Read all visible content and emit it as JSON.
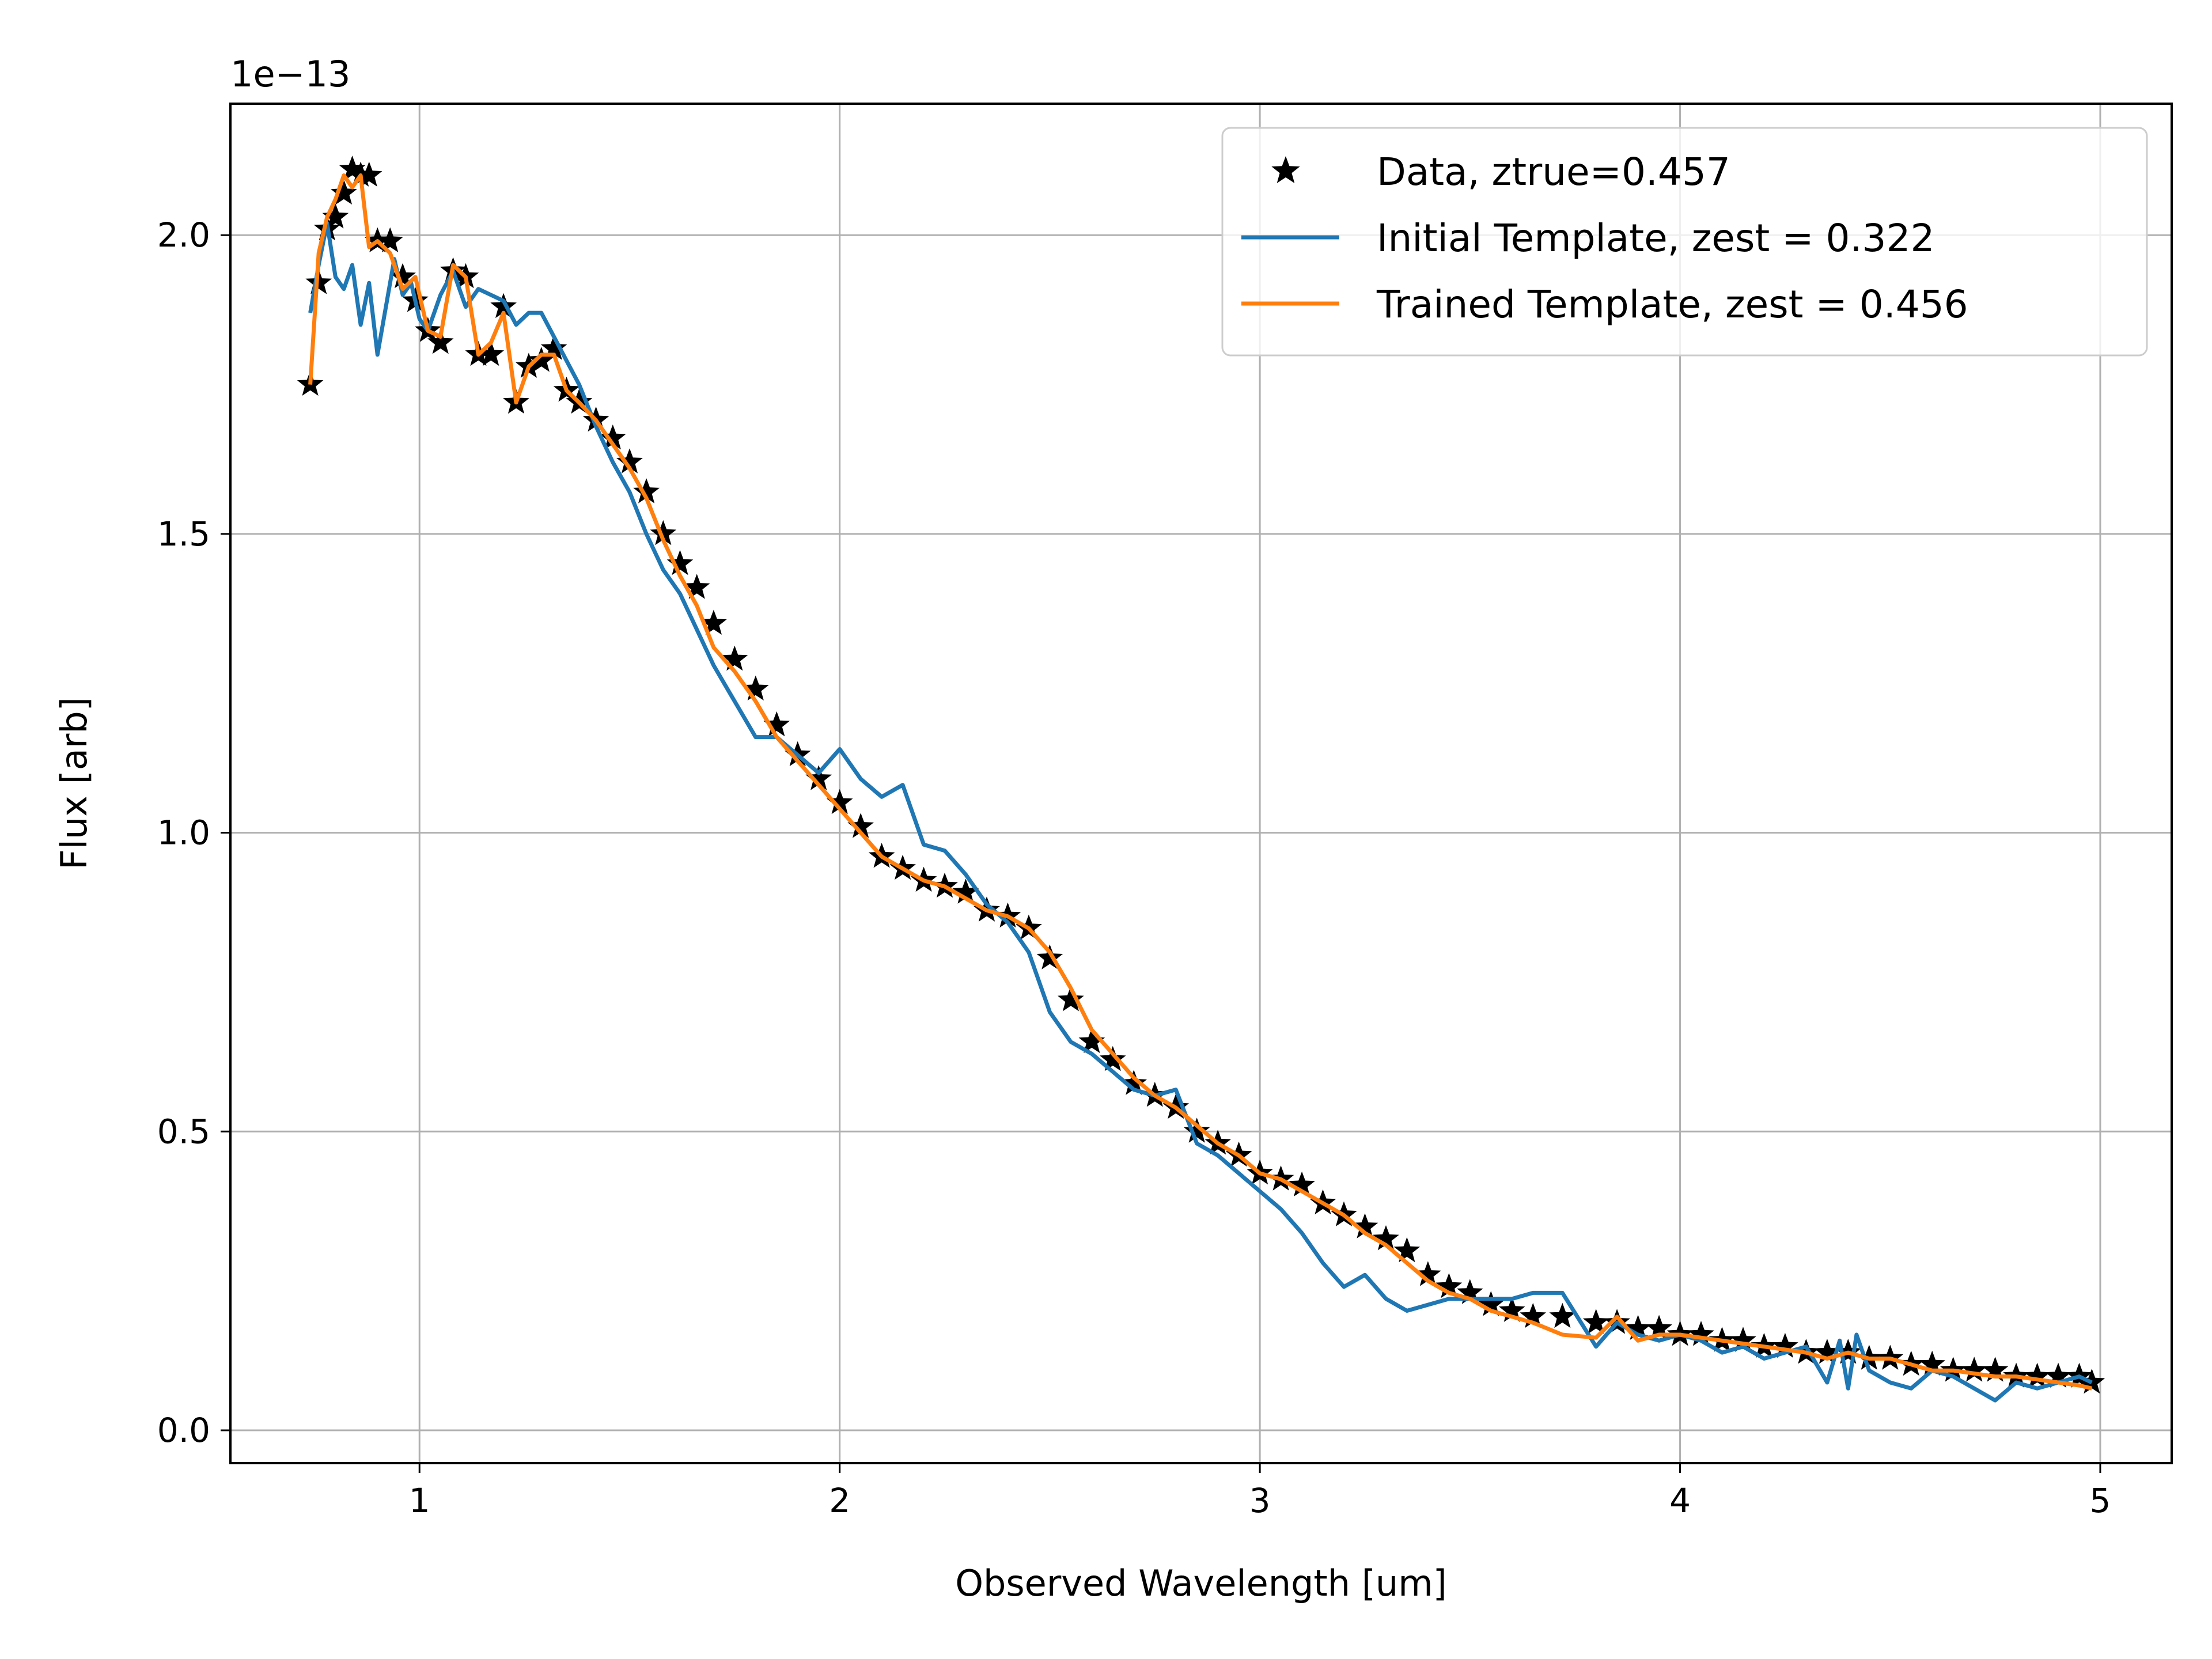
{
  "chart_data": {
    "type": "line",
    "title": "",
    "xlabel": "Observed Wavelength [um]",
    "ylabel": "Flux [arb]",
    "y_offset_text": "1e−13",
    "xlim": [
      0.55,
      5.17
    ],
    "ylim": [
      -0.055,
      2.22
    ],
    "xticks": [
      1,
      2,
      3,
      4,
      5
    ],
    "xtick_labels": [
      "1",
      "2",
      "3",
      "4",
      "5"
    ],
    "yticks": [
      0.0,
      0.5,
      1.0,
      1.5,
      2.0
    ],
    "ytick_labels": [
      "0.0",
      "0.5",
      "1.0",
      "1.5",
      "2.0"
    ],
    "grid": true,
    "legend_position": "upper-right",
    "series": [
      {
        "name": "Data, ztrue=0.457",
        "style": "markers",
        "marker": "star",
        "color": "#000000",
        "x": [
          0.74,
          0.76,
          0.78,
          0.8,
          0.82,
          0.84,
          0.86,
          0.88,
          0.9,
          0.93,
          0.96,
          0.99,
          1.02,
          1.05,
          1.08,
          1.11,
          1.14,
          1.17,
          1.2,
          1.23,
          1.26,
          1.29,
          1.32,
          1.35,
          1.38,
          1.42,
          1.46,
          1.5,
          1.54,
          1.58,
          1.62,
          1.66,
          1.7,
          1.75,
          1.8,
          1.85,
          1.9,
          1.95,
          2.0,
          2.05,
          2.1,
          2.15,
          2.2,
          2.25,
          2.3,
          2.35,
          2.4,
          2.45,
          2.5,
          2.55,
          2.6,
          2.65,
          2.7,
          2.75,
          2.8,
          2.85,
          2.9,
          2.95,
          3.0,
          3.05,
          3.1,
          3.15,
          3.2,
          3.25,
          3.3,
          3.35,
          3.4,
          3.45,
          3.5,
          3.55,
          3.6,
          3.65,
          3.72,
          3.8,
          3.85,
          3.9,
          3.95,
          4.0,
          4.05,
          4.1,
          4.15,
          4.2,
          4.25,
          4.3,
          4.35,
          4.4,
          4.45,
          4.5,
          4.55,
          4.6,
          4.65,
          4.7,
          4.75,
          4.8,
          4.85,
          4.9,
          4.95,
          4.98
        ],
        "values": [
          1.75,
          1.92,
          2.01,
          2.03,
          2.07,
          2.11,
          2.1,
          2.1,
          1.99,
          1.99,
          1.93,
          1.89,
          1.84,
          1.82,
          1.94,
          1.93,
          1.8,
          1.8,
          1.88,
          1.72,
          1.78,
          1.79,
          1.81,
          1.74,
          1.72,
          1.69,
          1.66,
          1.62,
          1.57,
          1.5,
          1.45,
          1.41,
          1.35,
          1.29,
          1.24,
          1.18,
          1.13,
          1.09,
          1.05,
          1.01,
          0.96,
          0.94,
          0.92,
          0.91,
          0.9,
          0.87,
          0.86,
          0.84,
          0.79,
          0.72,
          0.65,
          0.62,
          0.58,
          0.56,
          0.54,
          0.5,
          0.48,
          0.46,
          0.43,
          0.42,
          0.41,
          0.38,
          0.36,
          0.34,
          0.32,
          0.3,
          0.26,
          0.24,
          0.23,
          0.21,
          0.2,
          0.19,
          0.19,
          0.18,
          0.18,
          0.17,
          0.17,
          0.16,
          0.16,
          0.15,
          0.15,
          0.14,
          0.14,
          0.13,
          0.13,
          0.13,
          0.12,
          0.12,
          0.11,
          0.11,
          0.1,
          0.1,
          0.1,
          0.09,
          0.09,
          0.09,
          0.09,
          0.08
        ]
      },
      {
        "name": "Initial Template, zest = 0.322",
        "style": "line",
        "color": "#1f77b4",
        "x": [
          0.74,
          0.76,
          0.78,
          0.8,
          0.82,
          0.84,
          0.86,
          0.88,
          0.9,
          0.92,
          0.94,
          0.96,
          0.98,
          1.0,
          1.02,
          1.05,
          1.08,
          1.11,
          1.14,
          1.17,
          1.2,
          1.23,
          1.26,
          1.29,
          1.32,
          1.35,
          1.38,
          1.42,
          1.46,
          1.5,
          1.54,
          1.58,
          1.62,
          1.66,
          1.7,
          1.75,
          1.8,
          1.85,
          1.9,
          1.95,
          2.0,
          2.05,
          2.1,
          2.15,
          2.2,
          2.25,
          2.3,
          2.35,
          2.4,
          2.45,
          2.5,
          2.55,
          2.6,
          2.65,
          2.7,
          2.75,
          2.8,
          2.85,
          2.9,
          2.95,
          3.0,
          3.05,
          3.1,
          3.15,
          3.2,
          3.25,
          3.3,
          3.35,
          3.4,
          3.45,
          3.5,
          3.55,
          3.6,
          3.65,
          3.72,
          3.8,
          3.85,
          3.9,
          3.95,
          4.0,
          4.05,
          4.1,
          4.15,
          4.2,
          4.25,
          4.3,
          4.35,
          4.38,
          4.4,
          4.42,
          4.45,
          4.5,
          4.55,
          4.6,
          4.65,
          4.7,
          4.75,
          4.8,
          4.85,
          4.9,
          4.95,
          4.98
        ],
        "values": [
          1.87,
          1.95,
          2.02,
          1.93,
          1.91,
          1.95,
          1.85,
          1.92,
          1.8,
          1.88,
          1.96,
          1.9,
          1.92,
          1.86,
          1.84,
          1.9,
          1.94,
          1.88,
          1.91,
          1.9,
          1.89,
          1.85,
          1.87,
          1.87,
          1.83,
          1.79,
          1.75,
          1.68,
          1.62,
          1.57,
          1.5,
          1.44,
          1.4,
          1.34,
          1.28,
          1.22,
          1.16,
          1.16,
          1.13,
          1.1,
          1.14,
          1.09,
          1.06,
          1.08,
          0.98,
          0.97,
          0.93,
          0.88,
          0.85,
          0.8,
          0.7,
          0.65,
          0.63,
          0.6,
          0.57,
          0.56,
          0.57,
          0.48,
          0.46,
          0.43,
          0.4,
          0.37,
          0.33,
          0.28,
          0.24,
          0.26,
          0.22,
          0.2,
          0.21,
          0.22,
          0.22,
          0.22,
          0.22,
          0.23,
          0.23,
          0.14,
          0.18,
          0.16,
          0.15,
          0.16,
          0.15,
          0.13,
          0.14,
          0.12,
          0.13,
          0.14,
          0.08,
          0.15,
          0.07,
          0.16,
          0.1,
          0.08,
          0.07,
          0.1,
          0.09,
          0.07,
          0.05,
          0.08,
          0.07,
          0.08,
          0.09,
          0.08
        ]
      },
      {
        "name": "Trained Template, zest = 0.456",
        "style": "line",
        "color": "#ff7f0e",
        "x": [
          0.74,
          0.76,
          0.78,
          0.8,
          0.82,
          0.84,
          0.86,
          0.88,
          0.9,
          0.93,
          0.96,
          0.99,
          1.02,
          1.05,
          1.08,
          1.11,
          1.14,
          1.17,
          1.2,
          1.23,
          1.26,
          1.29,
          1.32,
          1.35,
          1.38,
          1.42,
          1.46,
          1.5,
          1.54,
          1.58,
          1.62,
          1.66,
          1.7,
          1.75,
          1.8,
          1.85,
          1.9,
          1.95,
          2.0,
          2.05,
          2.1,
          2.15,
          2.2,
          2.25,
          2.3,
          2.35,
          2.4,
          2.45,
          2.5,
          2.55,
          2.6,
          2.65,
          2.7,
          2.75,
          2.8,
          2.85,
          2.9,
          2.95,
          3.0,
          3.05,
          3.1,
          3.15,
          3.2,
          3.25,
          3.3,
          3.35,
          3.4,
          3.45,
          3.5,
          3.55,
          3.6,
          3.65,
          3.72,
          3.8,
          3.85,
          3.9,
          3.95,
          4.0,
          4.05,
          4.1,
          4.15,
          4.2,
          4.25,
          4.3,
          4.35,
          4.4,
          4.45,
          4.5,
          4.55,
          4.6,
          4.65,
          4.7,
          4.75,
          4.8,
          4.85,
          4.9,
          4.95,
          4.98
        ],
        "values": [
          1.75,
          1.97,
          2.03,
          2.06,
          2.1,
          2.08,
          2.1,
          1.98,
          1.99,
          1.97,
          1.91,
          1.93,
          1.84,
          1.83,
          1.95,
          1.93,
          1.8,
          1.82,
          1.87,
          1.72,
          1.78,
          1.8,
          1.8,
          1.74,
          1.72,
          1.69,
          1.65,
          1.61,
          1.56,
          1.49,
          1.43,
          1.38,
          1.31,
          1.27,
          1.22,
          1.16,
          1.12,
          1.08,
          1.04,
          1.0,
          0.96,
          0.94,
          0.92,
          0.91,
          0.89,
          0.87,
          0.86,
          0.84,
          0.8,
          0.74,
          0.67,
          0.63,
          0.59,
          0.56,
          0.54,
          0.51,
          0.48,
          0.46,
          0.43,
          0.42,
          0.4,
          0.38,
          0.36,
          0.33,
          0.31,
          0.28,
          0.25,
          0.23,
          0.22,
          0.2,
          0.19,
          0.18,
          0.16,
          0.155,
          0.19,
          0.15,
          0.16,
          0.16,
          0.155,
          0.15,
          0.145,
          0.14,
          0.135,
          0.13,
          0.12,
          0.13,
          0.12,
          0.12,
          0.11,
          0.1,
          0.1,
          0.095,
          0.09,
          0.09,
          0.085,
          0.08,
          0.075,
          0.07
        ]
      }
    ]
  }
}
